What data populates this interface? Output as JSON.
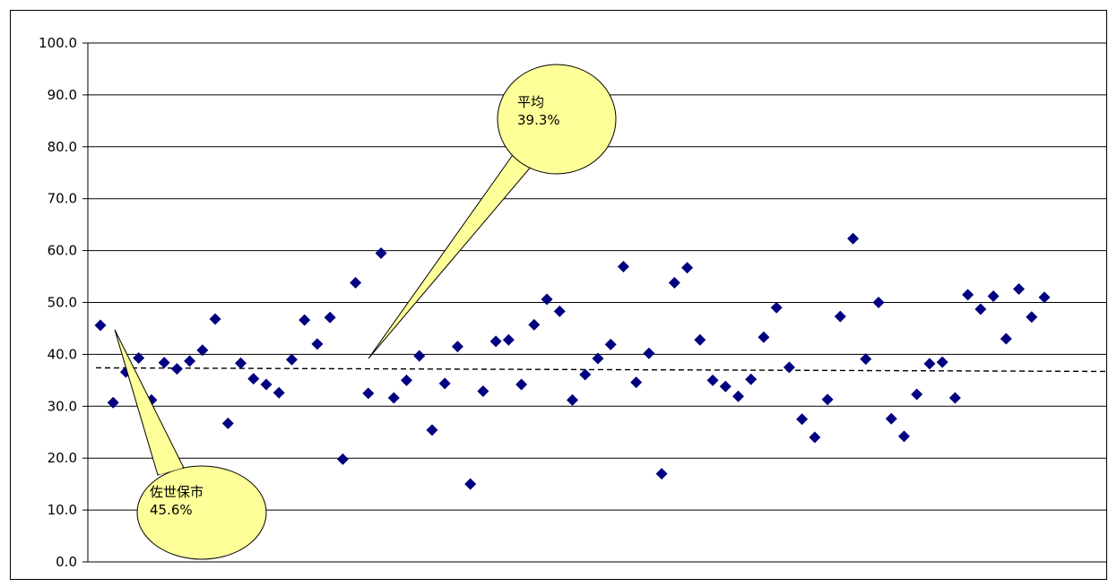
{
  "chart_data": {
    "type": "scatter",
    "title": "",
    "xlabel": "",
    "ylabel": "",
    "ylim": [
      0,
      100
    ],
    "yticks": [
      "100.0",
      "90.0",
      "80.0",
      "70.0",
      "60.0",
      "50.0",
      "40.0",
      "30.0",
      "20.0",
      "10.0",
      "0.0"
    ],
    "grid": true,
    "legend": "none",
    "marker_color": "#000080",
    "average_line_color": "#000000",
    "callout_fill": "#FFFF99",
    "series": [
      {
        "values": [
          45.6,
          30.7,
          36.6,
          39.3,
          31.2,
          38.4,
          37.2,
          38.7,
          40.8,
          46.8,
          26.7,
          38.3,
          35.3,
          34.2,
          32.6,
          39.0,
          46.6,
          42.0,
          47.1,
          19.8,
          53.8,
          32.5,
          59.5,
          31.6,
          35.0,
          39.7,
          25.4,
          34.4,
          41.5,
          15.0,
          32.9,
          42.5,
          42.8,
          34.2,
          45.7,
          50.6,
          48.3,
          31.2,
          36.1,
          39.2,
          41.9,
          56.9,
          34.6,
          40.2,
          17.0,
          53.8,
          56.7,
          42.8,
          35.0,
          33.8,
          31.9,
          35.2,
          43.3,
          49.0,
          37.5,
          27.5,
          24.0,
          31.3,
          47.3,
          62.3,
          39.1,
          50.0,
          27.6,
          24.2,
          32.3,
          38.2,
          38.5,
          31.6,
          51.5,
          48.7,
          51.2,
          43.0,
          52.6,
          47.2,
          51.0
        ]
      }
    ],
    "average": 39.3,
    "annotations": [
      {
        "line1": "平均",
        "line2": "39.3%"
      },
      {
        "line1": "佐世保市",
        "line2": "45.6%"
      }
    ]
  }
}
